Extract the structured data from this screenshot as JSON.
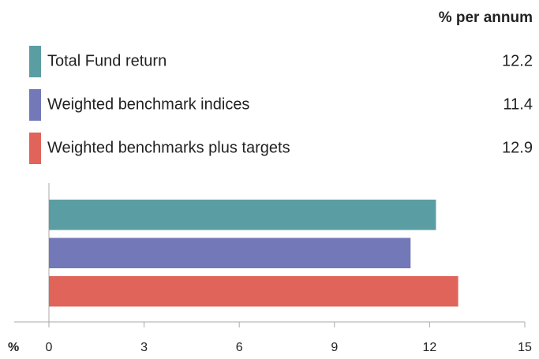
{
  "chart_data": {
    "type": "bar",
    "orientation": "horizontal",
    "value_header": "% per annum",
    "categories": [
      "Total Fund return",
      "Weighted benchmark indices",
      "Weighted benchmarks plus targets"
    ],
    "values": [
      12.2,
      11.4,
      12.9
    ],
    "colors": [
      "#5a9ea4",
      "#7278b8",
      "#e0645a"
    ],
    "xlabel": "%",
    "xlim": [
      0,
      15
    ],
    "xticks": [
      0,
      3,
      6,
      9,
      12,
      15
    ]
  }
}
